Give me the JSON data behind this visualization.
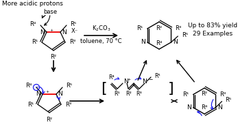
{
  "top_text": "More acidic protons",
  "base_text": "base",
  "reagents1": "K₂CO₃",
  "reagents2": "toluene, 70 °C",
  "yield_text": "Up to 83% yield",
  "examples_text": "29 Examples",
  "background": "#ffffff",
  "black": "#000000",
  "red": "#ee1111",
  "blue": "#1a1aee",
  "gray": "#555555",
  "figw": 3.63,
  "figh": 1.89,
  "dpi": 100
}
